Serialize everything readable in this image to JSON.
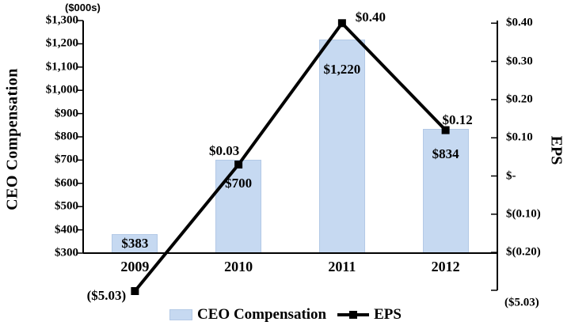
{
  "chart_data": {
    "type": "combo-bar-line",
    "categories": [
      "2009",
      "2010",
      "2011",
      "2012"
    ],
    "series": [
      {
        "name": "CEO Compensation",
        "chart_type": "bar",
        "axis": "left",
        "values": [
          383,
          700,
          1220,
          834
        ],
        "value_labels": [
          "$383",
          "$700",
          "$1,220",
          "$834"
        ],
        "color": "#c6d9f1"
      },
      {
        "name": "EPS",
        "chart_type": "line",
        "axis": "right",
        "values": [
          -5.03,
          0.03,
          0.4,
          0.12
        ],
        "value_labels": [
          "($5.03)",
          "$0.03",
          "$0.40",
          "$0.12"
        ],
        "color": "#000000"
      }
    ],
    "left_axis": {
      "title": "CEO Compensation",
      "note": "($000s)",
      "min": 300,
      "max": 1300,
      "step": 100,
      "tick_labels": [
        "$1,300",
        "$1,200",
        "$1,100",
        "$1,000",
        "$900",
        "$800",
        "$700",
        "$600",
        "$500",
        "$400",
        "$300"
      ]
    },
    "right_axis": {
      "title": "EPS",
      "min": -0.2,
      "max": 0.4,
      "step": 0.1,
      "tick_labels": [
        "$0.40",
        "$0.30",
        "$0.20",
        "$0.10",
        "$-",
        "$(0.10)",
        "$(0.20)"
      ],
      "outlier_tick_label": "($5.03)"
    },
    "legend": [
      {
        "label": "CEO Compensation",
        "swatch": "bar"
      },
      {
        "label": "EPS",
        "swatch": "line"
      }
    ],
    "gridlines": false,
    "legend_position": "bottom"
  }
}
